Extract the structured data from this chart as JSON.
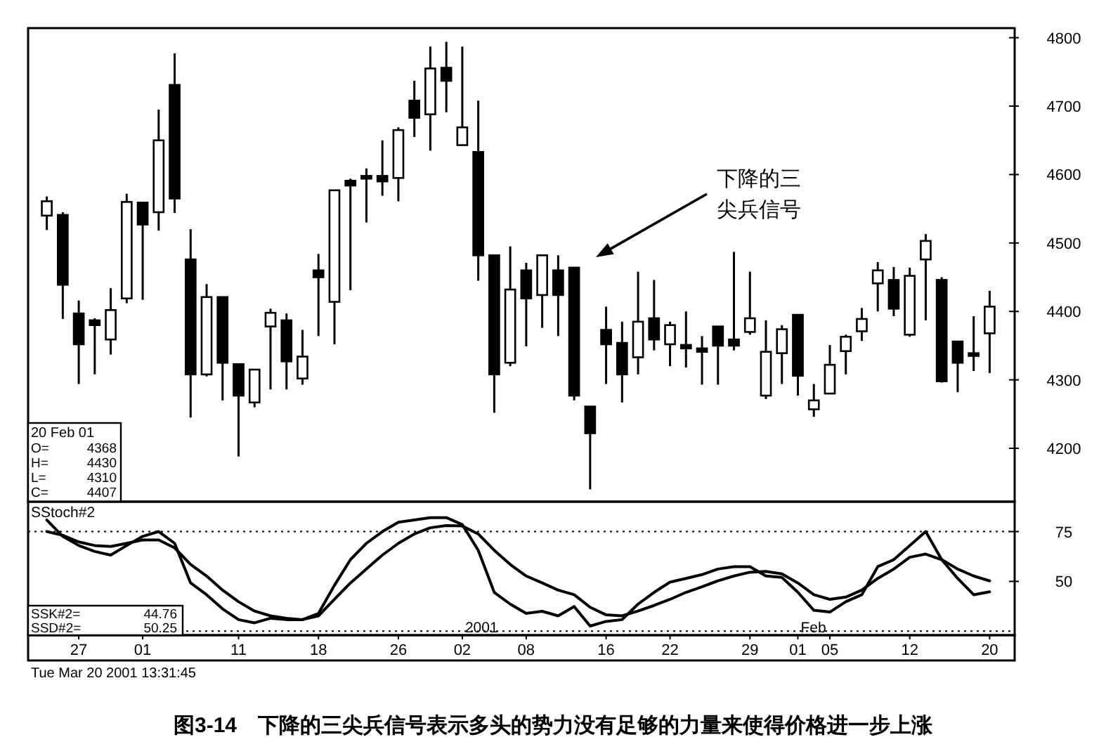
{
  "chart_data": [
    {
      "type": "candlestick",
      "title": "图3-14　下降的三尖兵信号表示多头的势力没有足够的力量来使得价格进一步上涨",
      "categories": [
        null,
        null,
        null,
        null,
        null,
        null,
        null,
        null,
        null,
        null,
        null,
        null,
        null,
        null,
        null,
        null,
        null,
        null,
        null,
        null,
        null,
        null,
        null,
        null,
        null,
        null,
        null,
        null,
        null,
        null,
        null,
        null,
        null,
        null,
        null,
        null,
        null,
        null,
        null,
        null,
        null,
        null,
        null,
        null,
        null,
        null,
        null,
        null,
        null,
        null,
        null,
        null,
        null,
        null,
        null,
        null,
        null,
        null,
        null,
        null
      ],
      "ohlc": [
        [
          4540,
          4568,
          4519,
          4561
        ],
        [
          4541,
          4545,
          4389,
          4439
        ],
        [
          4397,
          4416,
          4294,
          4352
        ],
        [
          4387,
          4390,
          4308,
          4380
        ],
        [
          4359,
          4434,
          4337,
          4402
        ],
        [
          4419,
          4572,
          4412,
          4560
        ],
        [
          4559,
          4559,
          4417,
          4527
        ],
        [
          4545,
          4695,
          4518,
          4650
        ],
        [
          4731,
          4777,
          4544,
          4565
        ],
        [
          4476,
          4520,
          4245,
          4308
        ],
        [
          4308,
          4440,
          4305,
          4421
        ],
        [
          4421,
          4421,
          4270,
          4325
        ],
        [
          4323,
          4323,
          4188,
          4277
        ],
        [
          4267,
          4315,
          4260,
          4315
        ],
        [
          4378,
          4404,
          4286,
          4398
        ],
        [
          4387,
          4397,
          4286,
          4327
        ],
        [
          4302,
          4373,
          4293,
          4334
        ],
        [
          4460,
          4484,
          4364,
          4450
        ],
        [
          4414,
          4577,
          4352,
          4577
        ],
        [
          4591,
          4594,
          4431,
          4584
        ],
        [
          4598,
          4609,
          4530,
          4594
        ],
        [
          4598,
          4650,
          4569,
          4590
        ],
        [
          4595,
          4669,
          4561,
          4665
        ],
        [
          4708,
          4737,
          4655,
          4683
        ],
        [
          4688,
          4787,
          4635,
          4755
        ],
        [
          4756,
          4794,
          4691,
          4737
        ],
        [
          4643,
          4787,
          4643,
          4669
        ],
        [
          4633,
          4708,
          4445,
          4482
        ],
        [
          4482,
          4482,
          4252,
          4308
        ],
        [
          4325,
          4495,
          4320,
          4432
        ],
        [
          4460,
          4471,
          4349,
          4419
        ],
        [
          4424,
          4482,
          4376,
          4482
        ],
        [
          4460,
          4482,
          4364,
          4424
        ],
        [
          4464,
          4464,
          4270,
          4277
        ],
        [
          4261,
          4261,
          4140,
          4222
        ],
        [
          4373,
          4407,
          4294,
          4352
        ],
        [
          4354,
          4385,
          4267,
          4308
        ],
        [
          4333,
          4458,
          4308,
          4385
        ],
        [
          4390,
          4446,
          4343,
          4359
        ],
        [
          4352,
          4385,
          4320,
          4380
        ],
        [
          4351,
          4400,
          4318,
          4346
        ],
        [
          4346,
          4364,
          4293,
          4341
        ],
        [
          4378,
          4378,
          4293,
          4350
        ],
        [
          4359,
          4487,
          4343,
          4350
        ],
        [
          4370,
          4458,
          4366,
          4390
        ],
        [
          4277,
          4387,
          4272,
          4341
        ],
        [
          4339,
          4380,
          4294,
          4374
        ],
        [
          4395,
          4395,
          4277,
          4306
        ],
        [
          4257,
          4294,
          4246,
          4270
        ],
        [
          4280,
          4351,
          4279,
          4322
        ],
        [
          4342,
          4366,
          4308,
          4363
        ],
        [
          4371,
          4405,
          4357,
          4389
        ],
        [
          4441,
          4472,
          4400,
          4460
        ],
        [
          4446,
          4465,
          4393,
          4404
        ],
        [
          4366,
          4464,
          4363,
          4452
        ],
        [
          4476,
          4513,
          4387,
          4503
        ],
        [
          4446,
          4450,
          4296,
          4298
        ],
        [
          4356,
          4356,
          4282,
          4325
        ],
        [
          4339,
          4393,
          4313,
          4335
        ],
        [
          4368,
          4430,
          4310,
          4407
        ]
      ],
      "color": "#000000",
      "ylim": [
        4122,
        4814
      ],
      "yticks": [
        4200,
        4300,
        4400,
        4500,
        4600,
        4700,
        4800
      ],
      "tick_labels": "y",
      "annotations": [
        "20 Feb 01",
        "O=",
        "4368",
        "H=",
        "4430",
        "L=",
        "4310",
        "C=",
        "4407",
        "下降的三尖兵信号"
      ]
    },
    {
      "type": "line",
      "title": "SStoch#2",
      "categories": [
        null,
        null,
        "27",
        null,
        null,
        null,
        "01",
        null,
        null,
        null,
        null,
        null,
        "11",
        null,
        null,
        null,
        null,
        "18",
        null,
        null,
        null,
        null,
        "26",
        null,
        null,
        null,
        "02",
        null,
        null,
        null,
        "08",
        null,
        null,
        null,
        null,
        "16",
        null,
        null,
        null,
        "22",
        null,
        null,
        null,
        null,
        "29",
        null,
        null,
        "01",
        null,
        "05",
        null,
        null,
        null,
        null,
        "12",
        null,
        null,
        null,
        null,
        "20"
      ],
      "series": [
        {
          "color": "#000000",
          "values": [
            80.8,
            72.6,
            68,
            65,
            63.2,
            68,
            72.6,
            75,
            69.1,
            49.2,
            43.3,
            36.2,
            30.8,
            29.2,
            31.5,
            30.8,
            30.8,
            33.9,
            48,
            60.9,
            69.1,
            75,
            79.7,
            80.8,
            82,
            82,
            78.5,
            65.6,
            44.5,
            38.6,
            33.9,
            35,
            32.7,
            37.4,
            27.6,
            29.9,
            30.8,
            38.6,
            44.5,
            49.6,
            51.5,
            53.4,
            56.2,
            57.4,
            57.4,
            52.7,
            52,
            44.5,
            35.5,
            34.6,
            39.8,
            43.3,
            57.4,
            60.9,
            68,
            75,
            60.9,
            51.5,
            43.3,
            44.76
          ]
        },
        {
          "color": "#000000",
          "values": [
            75,
            73.1,
            69.8,
            68,
            67.5,
            69.1,
            70.8,
            70.8,
            66.8,
            58.5,
            52.7,
            45.6,
            39.8,
            35.1,
            32.7,
            31.5,
            30.8,
            32.7,
            41,
            49.2,
            56.2,
            63.2,
            69.1,
            73.8,
            76.9,
            78,
            77.8,
            73.8,
            65.6,
            58.5,
            52.7,
            49.2,
            45.6,
            43.3,
            37,
            33.2,
            32.7,
            35.1,
            37.9,
            41,
            44.5,
            47.3,
            50.3,
            52.7,
            54.6,
            55,
            53.8,
            49.2,
            43.3,
            41,
            42.1,
            45.6,
            51.5,
            56.2,
            62.1,
            63.7,
            60.9,
            56.2,
            52.7,
            50.25
          ]
        }
      ],
      "ylim": [
        23,
        90
      ],
      "yticks": [
        50,
        75
      ],
      "ref_lines": [
        {
          "axis": "y",
          "value": 75,
          "line_style": "dotted"
        },
        {
          "axis": "y",
          "value": 25,
          "line_style": "dotted"
        }
      ],
      "annotations": [
        "SSK#2=",
        "44.76",
        "SSD#2=",
        "50.25",
        "2001",
        "Feb",
        "Tue Mar 20 2001 13:31:45"
      ]
    }
  ]
}
